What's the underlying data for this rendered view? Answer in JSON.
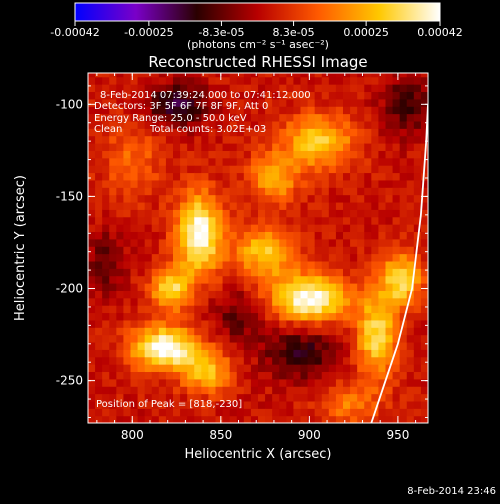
{
  "chart_data": {
    "type": "heatmap",
    "title": "Reconstructed RHESSI Image",
    "xlabel": "Heliocentric X (arcsec)",
    "ylabel": "Heliocentric Y (arcsec)",
    "xlim": [
      775,
      967
    ],
    "ylim": [
      -273,
      -83
    ],
    "x_ticks": [
      800,
      850,
      900,
      950
    ],
    "y_ticks": [
      -250,
      -200,
      -150,
      -100
    ],
    "colorbar": {
      "ticks": [
        -0.00042,
        -0.00025,
        -8.3e-05,
        8.3e-05,
        0.00025,
        0.00042
      ],
      "tick_labels": [
        "-0.00042",
        "-0.00025",
        "-8.3e-05",
        "8.3e-05",
        "0.00025",
        "0.00042"
      ],
      "units_label": "(photons cm⁻² s⁻¹ asec⁻²)",
      "range": [
        -0.00042,
        0.00042
      ],
      "colors": [
        "#0000ff",
        "#7a00c8",
        "#2a0000",
        "#b80000",
        "#ff5a00",
        "#ffc800",
        "#ffffff"
      ]
    },
    "annotations": [
      "8-Feb-2014 07:39:24.000 to 07:41:12.000",
      "Detectors: 3F 5F 6F 7F 8F 9F, Att 0",
      "Energy Range: 25.0 - 50.0 keV",
      "Clean",
      "Total counts: 3.02E+03"
    ],
    "peak_label": "Position of Peak = [818,-230]",
    "peak_position": [
      818,
      -230
    ],
    "blobs": [
      {
        "x": 838,
        "y": -170,
        "intensity": 0.0004,
        "sx": 9,
        "sy": 15
      },
      {
        "x": 822,
        "y": -200,
        "intensity": 0.0003,
        "sx": 8,
        "sy": 8
      },
      {
        "x": 900,
        "y": -205,
        "intensity": 0.0004,
        "sx": 15,
        "sy": 9
      },
      {
        "x": 875,
        "y": -180,
        "intensity": 0.00026,
        "sx": 12,
        "sy": 10
      },
      {
        "x": 818,
        "y": -232,
        "intensity": 0.00042,
        "sx": 13,
        "sy": 8
      },
      {
        "x": 842,
        "y": -245,
        "intensity": 0.00025,
        "sx": 10,
        "sy": 8
      },
      {
        "x": 905,
        "y": -120,
        "intensity": 0.00028,
        "sx": 14,
        "sy": 10
      },
      {
        "x": 880,
        "y": -140,
        "intensity": 0.00022,
        "sx": 10,
        "sy": 9
      },
      {
        "x": 938,
        "y": -225,
        "intensity": 0.0003,
        "sx": 8,
        "sy": 16
      },
      {
        "x": 952,
        "y": -195,
        "intensity": 0.0003,
        "sx": 8,
        "sy": 10
      },
      {
        "x": 922,
        "y": -262,
        "intensity": 0.00015,
        "sx": 12,
        "sy": 8
      },
      {
        "x": 800,
        "y": -130,
        "intensity": 0.00012,
        "sx": 12,
        "sy": 15
      },
      {
        "x": 825,
        "y": -100,
        "intensity": -0.00022,
        "sx": 12,
        "sy": 8
      },
      {
        "x": 895,
        "y": -235,
        "intensity": -0.00018,
        "sx": 14,
        "sy": 10
      },
      {
        "x": 860,
        "y": -215,
        "intensity": -0.00012,
        "sx": 10,
        "sy": 10
      },
      {
        "x": 955,
        "y": -100,
        "intensity": -0.00015,
        "sx": 10,
        "sy": 12
      },
      {
        "x": 785,
        "y": -185,
        "intensity": -0.00012,
        "sx": 8,
        "sy": 12
      }
    ],
    "limb_curve": [
      [
        935,
        -273
      ],
      [
        950,
        -230
      ],
      [
        958,
        -200
      ],
      [
        963,
        -160
      ],
      [
        966,
        -120
      ],
      [
        967,
        -100
      ]
    ]
  },
  "footer": {
    "timestamp": "8-Feb-2014 23:46"
  }
}
